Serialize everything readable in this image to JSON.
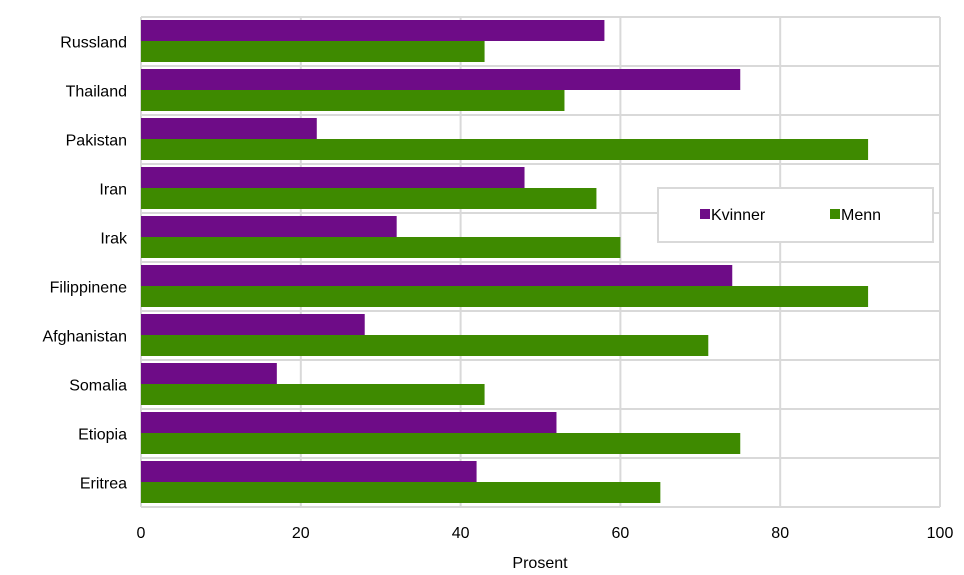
{
  "chart_data": {
    "type": "bar",
    "orientation": "horizontal",
    "categories": [
      "Russland",
      "Thailand",
      "Pakistan",
      "Iran",
      "Irak",
      "Filippinene",
      "Afghanistan",
      "Somalia",
      "Etiopia",
      "Eritrea"
    ],
    "series": [
      {
        "name": "Kvinner",
        "color": "#6E0C87",
        "values": [
          58,
          75,
          22,
          48,
          32,
          74,
          28,
          17,
          52,
          42
        ]
      },
      {
        "name": "Menn",
        "color": "#3E8A00",
        "values": [
          43,
          53,
          91,
          57,
          60,
          91,
          71,
          43,
          75,
          65
        ]
      }
    ],
    "xlabel": "Prosent",
    "xlim": [
      0,
      100
    ],
    "xticks": [
      0,
      20,
      40,
      60,
      80,
      100
    ],
    "grid": true,
    "legend": "inside-right"
  }
}
